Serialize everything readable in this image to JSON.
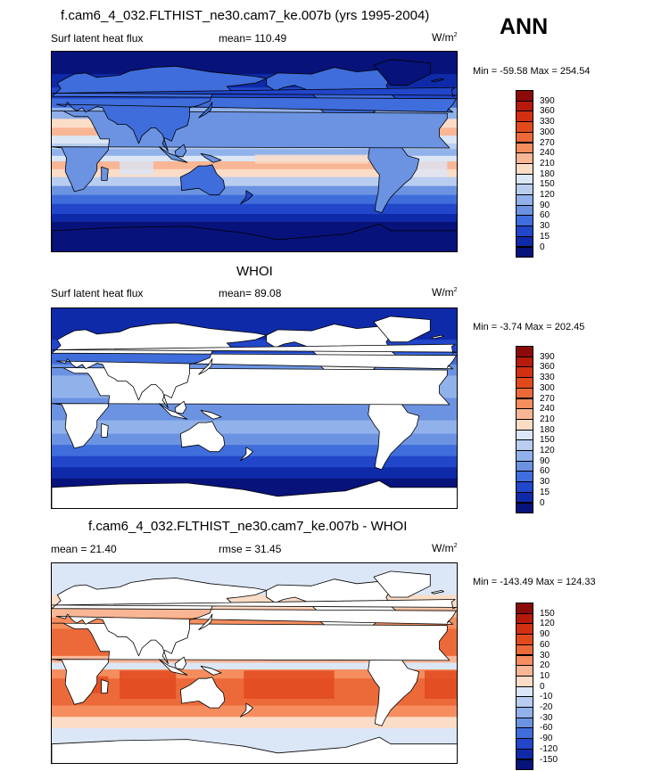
{
  "season": "ANN",
  "panels": [
    {
      "id": "model",
      "title": "f.cam6_4_032.FLTHIST_ne30.cam7_ke.007b (yrs 1995-2004)",
      "variable": "Surf latent heat flux",
      "stat1": "mean= 110.49",
      "stat2": "",
      "units": "W/m",
      "units_exp": "2",
      "minmax": "Min = -59.58 Max = 254.54",
      "levels": [
        "390",
        "360",
        "330",
        "300",
        "270",
        "240",
        "210",
        "180",
        "150",
        "120",
        "90",
        "60",
        "30",
        "15",
        "0"
      ],
      "colors": [
        "#8b0a0a",
        "#b51a0c",
        "#d32f12",
        "#e24a1e",
        "#ec6a3a",
        "#f58d5e",
        "#f9b695",
        "#fbdcc6",
        "#dbe6f6",
        "#b8cdf0",
        "#91b1ea",
        "#6b93e2",
        "#3f6ddb",
        "#2146c9",
        "#0f2aa8",
        "#07137a"
      ],
      "field": "model"
    },
    {
      "id": "obs",
      "title": "WHOI",
      "variable": "Surf latent heat flux",
      "stat1": "mean= 89.08",
      "stat2": "",
      "units": "W/m",
      "units_exp": "2",
      "minmax": "Min = -3.74 Max = 202.45",
      "levels": [
        "390",
        "360",
        "330",
        "300",
        "270",
        "240",
        "210",
        "180",
        "150",
        "120",
        "90",
        "60",
        "30",
        "15",
        "0"
      ],
      "colors": [
        "#8b0a0a",
        "#b51a0c",
        "#d32f12",
        "#e24a1e",
        "#ec6a3a",
        "#f58d5e",
        "#f9b695",
        "#fbdcc6",
        "#dbe6f6",
        "#b8cdf0",
        "#91b1ea",
        "#6b93e2",
        "#3f6ddb",
        "#2146c9",
        "#0f2aa8",
        "#07137a"
      ],
      "field": "obs"
    },
    {
      "id": "diff",
      "title": "f.cam6_4_032.FLTHIST_ne30.cam7_ke.007b - WHOI",
      "variable": "",
      "stat1": "mean = 21.40",
      "stat2": "rmse = 31.45",
      "units": "W/m",
      "units_exp": "2",
      "minmax": "Min = -143.49 Max = 124.33",
      "levels": [
        "150",
        "120",
        "90",
        "60",
        "30",
        "20",
        "10",
        "0",
        "-10",
        "-20",
        "-30",
        "-60",
        "-90",
        "-120",
        "-150"
      ],
      "colors": [
        "#8b0a0a",
        "#b51a0c",
        "#d32f12",
        "#e24a1e",
        "#ec6a3a",
        "#f58d5e",
        "#f9b695",
        "#fbdcc6",
        "#dbe6f6",
        "#b8cdf0",
        "#91b1ea",
        "#6b93e2",
        "#3f6ddb",
        "#2146c9",
        "#0f2aa8",
        "#07137a"
      ],
      "field": "diff"
    }
  ]
}
